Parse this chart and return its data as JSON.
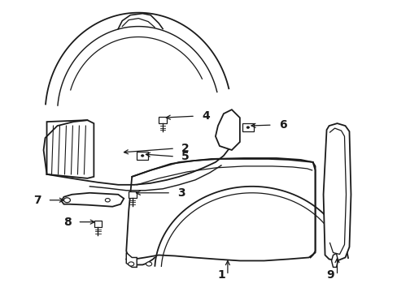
{
  "background_color": "#ffffff",
  "line_color": "#1a1a1a",
  "line_width": 1.3,
  "label_fontsize": 10,
  "figsize": [
    4.89,
    3.6
  ],
  "dpi": 100
}
